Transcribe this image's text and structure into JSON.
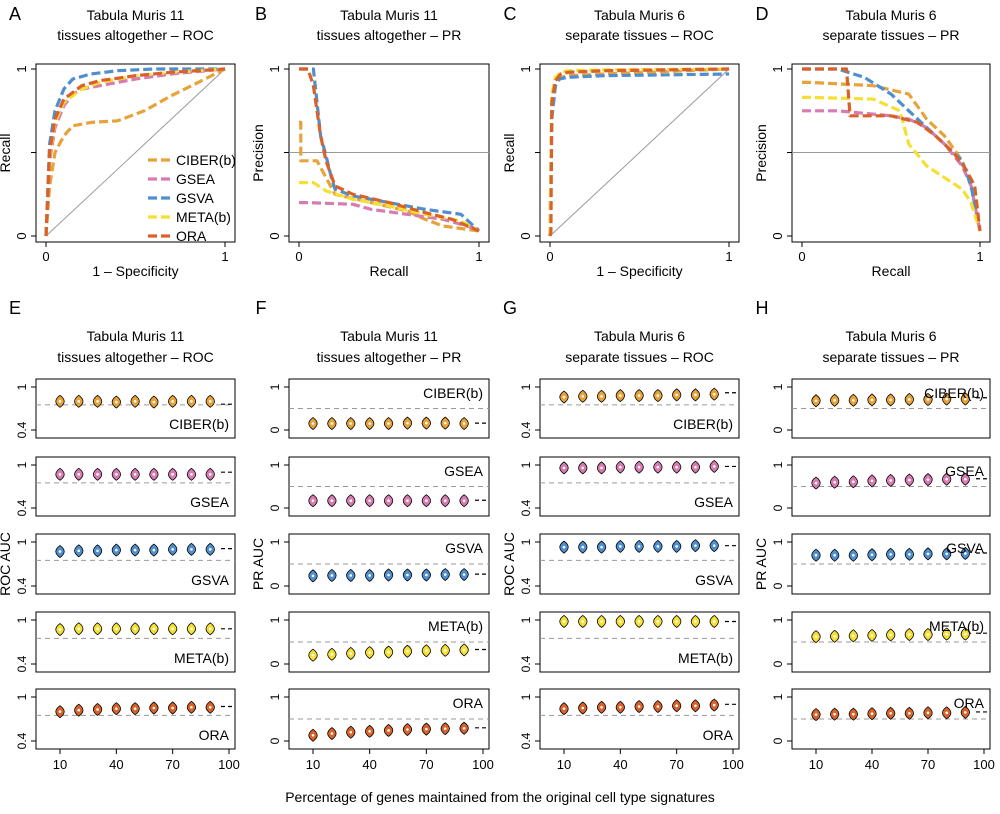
{
  "colors": {
    "CIBER(b)": "#e8a23a",
    "GSEA": "#d77bb1",
    "GSVA": "#4f8fcf",
    "META(b)": "#f6df33",
    "ORA": "#d9622a",
    "diag": "#9a9a9a",
    "dash_ref": "#9a9a9a"
  },
  "caption": "Percentage of genes maintained from the original cell type signatures",
  "chart_data": [
    {
      "panel": "A",
      "type": "line",
      "title": "Tabula Muris 11 tissues altogether – ROC",
      "title_lines": [
        "Tabula Muris 11",
        "tissues altogether – ROC"
      ],
      "xlabel": "1 – Specificity",
      "ylabel": "Recall",
      "xlim": [
        0,
        1
      ],
      "ylim": [
        0,
        1
      ],
      "xticks": [
        "0",
        "1"
      ],
      "yticks": [
        "0",
        "",
        "1"
      ],
      "reference": "diagonal",
      "legend": [
        "CIBER(b)",
        "GSEA",
        "GSVA",
        "META(b)",
        "ORA"
      ],
      "legend_position": "bottom-right",
      "series": [
        {
          "name": "CIBER(b)",
          "x": [
            0,
            0.02,
            0.05,
            0.1,
            0.15,
            0.25,
            0.4,
            0.55,
            0.7,
            0.85,
            1
          ],
          "y": [
            0,
            0.3,
            0.5,
            0.6,
            0.66,
            0.68,
            0.69,
            0.75,
            0.84,
            0.92,
            1
          ]
        },
        {
          "name": "GSEA",
          "x": [
            0,
            0.02,
            0.05,
            0.1,
            0.15,
            0.2,
            0.3,
            0.5,
            0.7,
            1
          ],
          "y": [
            0,
            0.45,
            0.65,
            0.78,
            0.85,
            0.88,
            0.9,
            0.94,
            0.97,
            1
          ]
        },
        {
          "name": "GSVA",
          "x": [
            0,
            0.02,
            0.05,
            0.1,
            0.15,
            0.25,
            0.4,
            0.6,
            1
          ],
          "y": [
            0,
            0.55,
            0.75,
            0.88,
            0.94,
            0.97,
            0.99,
            1,
            1
          ]
        },
        {
          "name": "META(b)",
          "x": [
            0,
            0.02,
            0.05,
            0.1,
            0.2,
            0.3,
            0.5,
            0.7,
            1
          ],
          "y": [
            0,
            0.48,
            0.68,
            0.8,
            0.88,
            0.92,
            0.96,
            0.98,
            1
          ]
        },
        {
          "name": "ORA",
          "x": [
            0,
            0.02,
            0.05,
            0.1,
            0.2,
            0.3,
            0.5,
            0.7,
            1
          ],
          "y": [
            0,
            0.5,
            0.7,
            0.82,
            0.9,
            0.93,
            0.96,
            0.98,
            1
          ]
        }
      ]
    },
    {
      "panel": "B",
      "type": "line",
      "title": "Tabula Muris 11 tissues altogether – PR",
      "title_lines": [
        "Tabula Muris 11",
        "tissues altogether – PR"
      ],
      "xlabel": "Recall",
      "ylabel": "Precision",
      "xlim": [
        0,
        1
      ],
      "ylim": [
        0,
        1
      ],
      "xticks": [
        "0",
        "1"
      ],
      "yticks": [
        "0",
        "",
        "1"
      ],
      "reference": "horizontal-0.5",
      "series": [
        {
          "name": "CIBER(b)",
          "x": [
            0,
            0.01,
            0.01,
            0.1,
            0.2,
            0.4,
            0.6,
            0.7,
            0.8,
            1
          ],
          "y": [
            0.68,
            0.68,
            0.45,
            0.45,
            0.25,
            0.2,
            0.15,
            0.1,
            0.06,
            0.03
          ]
        },
        {
          "name": "GSEA",
          "x": [
            0,
            0.03,
            0.05,
            0.3,
            0.4,
            0.6,
            0.8,
            1
          ],
          "y": [
            0.2,
            0.2,
            0.2,
            0.19,
            0.16,
            0.13,
            0.1,
            0.04
          ]
        },
        {
          "name": "GSVA",
          "x": [
            0,
            0.08,
            0.1,
            0.12,
            0.15,
            0.18,
            0.2,
            0.3,
            0.5,
            0.7,
            0.9,
            1
          ],
          "y": [
            1,
            1,
            0.8,
            0.6,
            0.48,
            0.35,
            0.28,
            0.24,
            0.2,
            0.16,
            0.13,
            0.03
          ]
        },
        {
          "name": "META(b)",
          "x": [
            0,
            0.08,
            0.15,
            0.3,
            0.5,
            0.7,
            0.9,
            1
          ],
          "y": [
            0.32,
            0.32,
            0.27,
            0.22,
            0.18,
            0.13,
            0.09,
            0.03
          ]
        },
        {
          "name": "ORA",
          "x": [
            0,
            0.05,
            0.08,
            0.1,
            0.12,
            0.15,
            0.2,
            0.3,
            0.5,
            0.7,
            0.85,
            1
          ],
          "y": [
            1,
            1,
            0.9,
            0.75,
            0.6,
            0.45,
            0.3,
            0.25,
            0.2,
            0.14,
            0.1,
            0.03
          ]
        }
      ]
    },
    {
      "panel": "C",
      "type": "line",
      "title": "Tabula Muris 6 separate tissues – ROC",
      "title_lines": [
        "Tabula Muris 6",
        "separate tissues – ROC"
      ],
      "xlabel": "1 – Specificity",
      "ylabel": "Recall",
      "xlim": [
        0,
        1
      ],
      "ylim": [
        0,
        1
      ],
      "xticks": [
        "0",
        "1"
      ],
      "yticks": [
        "0",
        "",
        "1"
      ],
      "reference": "diagonal",
      "series": [
        {
          "name": "CIBER(b)",
          "x": [
            0,
            0.01,
            0.03,
            0.06,
            0.1,
            0.3,
            1
          ],
          "y": [
            0,
            0.75,
            0.9,
            0.95,
            0.96,
            0.97,
            1
          ]
        },
        {
          "name": "GSEA",
          "x": [
            0,
            0.01,
            0.03,
            0.06,
            0.1,
            0.3,
            1
          ],
          "y": [
            0,
            0.8,
            0.93,
            0.97,
            0.98,
            0.99,
            1
          ]
        },
        {
          "name": "GSVA",
          "x": [
            0,
            0.01,
            0.03,
            0.05,
            0.1,
            0.3,
            1
          ],
          "y": [
            0,
            0.7,
            0.9,
            0.94,
            0.95,
            0.96,
            0.97
          ]
        },
        {
          "name": "META(b)",
          "x": [
            0,
            0.01,
            0.03,
            0.06,
            0.1,
            0.3,
            1
          ],
          "y": [
            0,
            0.85,
            0.95,
            0.98,
            0.99,
            0.995,
            1
          ]
        },
        {
          "name": "ORA",
          "x": [
            0,
            0.005,
            0.01,
            0.03,
            0.06,
            0.1,
            0.3,
            1
          ],
          "y": [
            0,
            0.02,
            0.8,
            0.93,
            0.97,
            0.98,
            0.99,
            1
          ]
        }
      ]
    },
    {
      "panel": "D",
      "type": "line",
      "title": "Tabula Muris 6 separate tissues – PR",
      "title_lines": [
        "Tabula Muris 6",
        "separate tissues – PR"
      ],
      "xlabel": "Recall",
      "ylabel": "Precision",
      "xlim": [
        0,
        1
      ],
      "ylim": [
        0,
        1
      ],
      "xticks": [
        "0",
        "1"
      ],
      "yticks": [
        "0",
        "",
        "1"
      ],
      "reference": "horizontal-0.5",
      "series": [
        {
          "name": "CIBER(b)",
          "x": [
            0,
            0.05,
            0.4,
            0.6,
            0.7,
            0.8,
            0.9,
            0.95,
            1
          ],
          "y": [
            0.92,
            0.92,
            0.9,
            0.85,
            0.7,
            0.6,
            0.45,
            0.3,
            0.03
          ]
        },
        {
          "name": "GSEA",
          "x": [
            0,
            0.2,
            0.5,
            0.6,
            0.7,
            0.8,
            0.9,
            0.95,
            1
          ],
          "y": [
            0.75,
            0.75,
            0.72,
            0.7,
            0.65,
            0.55,
            0.42,
            0.3,
            0.03
          ]
        },
        {
          "name": "GSVA",
          "x": [
            0,
            0.05,
            0.2,
            0.35,
            0.5,
            0.6,
            0.7,
            0.8,
            0.9,
            0.95,
            1
          ],
          "y": [
            1,
            1,
            1,
            0.95,
            0.85,
            0.75,
            0.65,
            0.55,
            0.45,
            0.3,
            0.03
          ]
        },
        {
          "name": "META(b)",
          "x": [
            0,
            0.05,
            0.4,
            0.55,
            0.6,
            0.7,
            0.8,
            0.9,
            0.95,
            1
          ],
          "y": [
            0.83,
            0.83,
            0.82,
            0.75,
            0.55,
            0.42,
            0.35,
            0.28,
            0.2,
            0.03
          ]
        },
        {
          "name": "ORA",
          "x": [
            0,
            0.15,
            0.25,
            0.27,
            0.5,
            0.65,
            0.75,
            0.85,
            0.92,
            0.97,
            1
          ],
          "y": [
            1,
            1,
            1,
            0.72,
            0.72,
            0.68,
            0.6,
            0.5,
            0.4,
            0.3,
            0.03
          ]
        }
      ]
    },
    {
      "panel": "E",
      "type": "violin",
      "title": "Tabula Muris 11 tissues altogether – ROC",
      "title_lines": [
        "Tabula Muris 11",
        "tissues altogether – ROC"
      ],
      "ylabel": "ROC AUC",
      "ylim": [
        0.4,
        1
      ],
      "yticks": [
        "0.4",
        "1"
      ],
      "x": [
        10,
        20,
        30,
        40,
        50,
        60,
        70,
        80,
        90,
        100
      ],
      "xticks": [
        "10",
        "40",
        "70",
        "100"
      ],
      "reference": 0.75,
      "series": [
        {
          "name": "CIBER(b)",
          "values": [
            0.8,
            0.8,
            0.8,
            0.79,
            0.8,
            0.79,
            0.8,
            0.8,
            0.8,
            0.76
          ]
        },
        {
          "name": "GSEA",
          "values": [
            0.87,
            0.87,
            0.87,
            0.87,
            0.87,
            0.87,
            0.87,
            0.87,
            0.87,
            0.9
          ]
        },
        {
          "name": "GSVA",
          "values": [
            0.87,
            0.88,
            0.88,
            0.89,
            0.89,
            0.89,
            0.9,
            0.9,
            0.9,
            0.91
          ]
        },
        {
          "name": "META(b)",
          "values": [
            0.87,
            0.88,
            0.88,
            0.88,
            0.88,
            0.88,
            0.88,
            0.88,
            0.88,
            0.88
          ]
        },
        {
          "name": "ORA",
          "values": [
            0.8,
            0.82,
            0.83,
            0.84,
            0.84,
            0.85,
            0.85,
            0.86,
            0.86,
            0.87
          ]
        }
      ]
    },
    {
      "panel": "F",
      "type": "violin",
      "title": "Tabula Muris 11 tissues altogether – PR",
      "title_lines": [
        "Tabula Muris 11",
        "tissues altogether – PR"
      ],
      "ylabel": "PR AUC",
      "ylim": [
        0,
        1
      ],
      "yticks": [
        "0",
        "1"
      ],
      "x": [
        10,
        20,
        30,
        40,
        50,
        60,
        70,
        80,
        90,
        100
      ],
      "xticks": [
        "10",
        "40",
        "70",
        "100"
      ],
      "reference": 0.5,
      "series": [
        {
          "name": "CIBER(b)",
          "values": [
            0.15,
            0.15,
            0.15,
            0.15,
            0.15,
            0.16,
            0.16,
            0.16,
            0.15,
            0.16
          ]
        },
        {
          "name": "GSEA",
          "values": [
            0.17,
            0.17,
            0.17,
            0.17,
            0.17,
            0.17,
            0.17,
            0.17,
            0.17,
            0.18
          ]
        },
        {
          "name": "GSVA",
          "values": [
            0.23,
            0.24,
            0.24,
            0.24,
            0.25,
            0.25,
            0.25,
            0.26,
            0.26,
            0.27
          ]
        },
        {
          "name": "META(b)",
          "values": [
            0.2,
            0.22,
            0.24,
            0.26,
            0.27,
            0.29,
            0.3,
            0.31,
            0.32,
            0.33
          ]
        },
        {
          "name": "ORA",
          "values": [
            0.13,
            0.17,
            0.2,
            0.22,
            0.24,
            0.26,
            0.27,
            0.28,
            0.29,
            0.3
          ]
        }
      ]
    },
    {
      "panel": "G",
      "type": "violin",
      "title": "Tabula Muris 6 separate tissues – ROC",
      "title_lines": [
        "Tabula Muris 6",
        "separate tissues – ROC"
      ],
      "ylabel": "ROC AUC",
      "ylim": [
        0.4,
        1
      ],
      "yticks": [
        "0.4",
        "1"
      ],
      "x": [
        10,
        20,
        30,
        40,
        50,
        60,
        70,
        80,
        90,
        100
      ],
      "xticks": [
        "10",
        "40",
        "70",
        "100"
      ],
      "reference": 0.75,
      "series": [
        {
          "name": "CIBER(b)",
          "values": [
            0.86,
            0.87,
            0.87,
            0.88,
            0.88,
            0.88,
            0.89,
            0.89,
            0.9,
            0.92
          ]
        },
        {
          "name": "GSEA",
          "values": [
            0.96,
            0.96,
            0.96,
            0.97,
            0.97,
            0.97,
            0.97,
            0.97,
            0.98,
            0.98
          ]
        },
        {
          "name": "GSVA",
          "values": [
            0.93,
            0.93,
            0.93,
            0.94,
            0.94,
            0.94,
            0.94,
            0.95,
            0.95,
            0.95
          ]
        },
        {
          "name": "META(b)",
          "values": [
            0.98,
            0.98,
            0.98,
            0.98,
            0.98,
            0.98,
            0.98,
            0.98,
            0.98,
            0.98
          ]
        },
        {
          "name": "ORA",
          "values": [
            0.84,
            0.85,
            0.86,
            0.86,
            0.87,
            0.87,
            0.88,
            0.88,
            0.89,
            0.9
          ]
        }
      ]
    },
    {
      "panel": "H",
      "type": "violin",
      "title": "Tabula Muris 6 separate tissues – PR",
      "title_lines": [
        "Tabula Muris 6",
        "separate tissues – PR"
      ],
      "ylabel": "PR AUC",
      "ylim": [
        0,
        1
      ],
      "yticks": [
        "0",
        "1"
      ],
      "x": [
        10,
        20,
        30,
        40,
        50,
        60,
        70,
        80,
        90,
        100
      ],
      "xticks": [
        "10",
        "40",
        "70",
        "100"
      ],
      "reference": 0.5,
      "series": [
        {
          "name": "CIBER(b)",
          "values": [
            0.68,
            0.69,
            0.69,
            0.7,
            0.7,
            0.71,
            0.71,
            0.72,
            0.72,
            0.75
          ]
        },
        {
          "name": "GSEA",
          "values": [
            0.58,
            0.6,
            0.61,
            0.63,
            0.64,
            0.65,
            0.66,
            0.67,
            0.67,
            0.68
          ]
        },
        {
          "name": "GSVA",
          "values": [
            0.7,
            0.7,
            0.7,
            0.71,
            0.72,
            0.72,
            0.73,
            0.73,
            0.74,
            0.75
          ]
        },
        {
          "name": "META(b)",
          "values": [
            0.62,
            0.63,
            0.64,
            0.65,
            0.66,
            0.67,
            0.67,
            0.68,
            0.68,
            0.7
          ]
        },
        {
          "name": "ORA",
          "values": [
            0.6,
            0.61,
            0.61,
            0.62,
            0.63,
            0.63,
            0.64,
            0.64,
            0.65,
            0.66
          ]
        }
      ]
    }
  ]
}
